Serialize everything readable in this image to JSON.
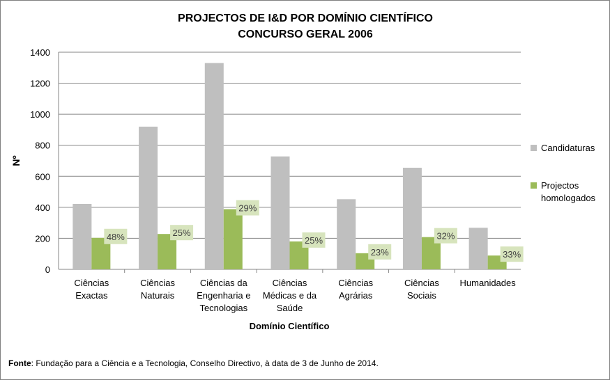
{
  "chart_data": {
    "type": "bar",
    "title": [
      "PROJECTOS DE I&D POR DOMÍNIO CIENTÍFICO",
      "CONCURSO GERAL 2006"
    ],
    "xlabel": "Domínio Científico",
    "ylabel": "Nº",
    "ylim": [
      0,
      1400
    ],
    "yticks": [
      "0",
      "200",
      "400",
      "600",
      "800",
      "1000",
      "1200",
      "1400"
    ],
    "grid": true,
    "legend_position": "right",
    "categories": [
      [
        "Ciências",
        "Exactas"
      ],
      [
        "Ciências",
        "Naturais"
      ],
      [
        "Ciências da",
        "Engenharia e",
        "Tecnologias"
      ],
      [
        "Ciências",
        "Médicas e da",
        "Saúde"
      ],
      [
        "Ciências",
        "Agrárias"
      ],
      [
        "Ciências",
        "Sociais"
      ],
      [
        "Humanidades"
      ]
    ],
    "series": [
      {
        "name": "Candidaturas",
        "color": "#bfbfbf",
        "values": [
          422,
          920,
          1330,
          728,
          452,
          655,
          268
        ]
      },
      {
        "name": [
          "Projectos",
          "homologados"
        ],
        "color": "#9bbb59",
        "values": [
          203,
          228,
          388,
          180,
          104,
          208,
          89
        ]
      }
    ],
    "data_labels": [
      "48%",
      "25%",
      "29%",
      "25%",
      "23%",
      "32%",
      "33%"
    ],
    "data_label_bg": "#d7e4bd"
  },
  "source": {
    "label": "Fonte",
    "text": ": Fundação para a Ciência e a Tecnologia, Conselho Directivo, à data de 3 de Junho de 2014."
  }
}
